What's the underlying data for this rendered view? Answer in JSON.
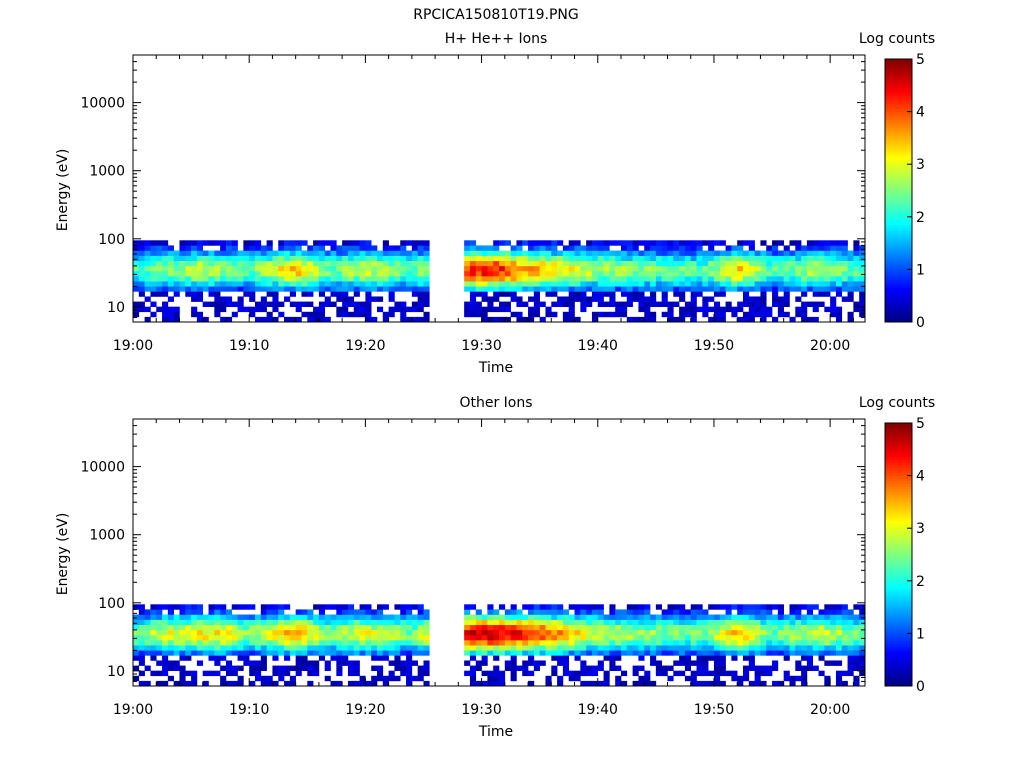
{
  "title": "RPCICA150810T19.PNG",
  "chart_data": [
    {
      "type": "heatmap",
      "title": "H+ He++ Ions",
      "xlabel": "Time",
      "ylabel": "Energy (eV)",
      "x_ticks": [
        "19:00",
        "19:10",
        "19:20",
        "19:30",
        "19:40",
        "19:50",
        "20:00"
      ],
      "xlim": [
        "19:00",
        "20:03"
      ],
      "y_scale": "log",
      "y_ticks": [
        10,
        100,
        1000,
        10000
      ],
      "y_tick_labels": [
        "10",
        "100",
        "1000",
        "10000"
      ],
      "ylim": [
        6,
        50000
      ],
      "colorbar": {
        "label": "Log counts",
        "range": [
          0,
          5
        ],
        "ticks": [
          "0",
          "1",
          "2",
          "3",
          "4",
          "5"
        ],
        "colormap": "jet"
      },
      "data_gap": [
        "19:25.5",
        "19:28.5"
      ],
      "data_energy_range_eV": [
        6,
        95
      ],
      "profile": [
        {
          "t": 0,
          "v": 2.2
        },
        {
          "t": 3,
          "v": 2.5
        },
        {
          "t": 6,
          "v": 2.9
        },
        {
          "t": 8,
          "v": 2.6
        },
        {
          "t": 10,
          "v": 2.3
        },
        {
          "t": 14,
          "v": 3.5
        },
        {
          "t": 17,
          "v": 2.4
        },
        {
          "t": 20,
          "v": 2.9
        },
        {
          "t": 24,
          "v": 2.3
        },
        {
          "t": 29,
          "v": 4.2
        },
        {
          "t": 31,
          "v": 4.4
        },
        {
          "t": 34,
          "v": 3.6
        },
        {
          "t": 37,
          "v": 3.2
        },
        {
          "t": 40,
          "v": 2.7
        },
        {
          "t": 45,
          "v": 2.5
        },
        {
          "t": 49,
          "v": 2.2
        },
        {
          "t": 52,
          "v": 3.4
        },
        {
          "t": 55,
          "v": 2.2
        },
        {
          "t": 59,
          "v": 2.8
        },
        {
          "t": 63,
          "v": 2.2
        }
      ]
    },
    {
      "type": "heatmap",
      "title": "Other Ions",
      "xlabel": "Time",
      "ylabel": "Energy (eV)",
      "x_ticks": [
        "19:00",
        "19:10",
        "19:20",
        "19:30",
        "19:40",
        "19:50",
        "20:00"
      ],
      "xlim": [
        "19:00",
        "20:03"
      ],
      "y_scale": "log",
      "y_ticks": [
        10,
        100,
        1000,
        10000
      ],
      "y_tick_labels": [
        "10",
        "100",
        "1000",
        "10000"
      ],
      "ylim": [
        6,
        50000
      ],
      "colorbar": {
        "label": "Log counts",
        "range": [
          0,
          5
        ],
        "ticks": [
          "0",
          "1",
          "2",
          "3",
          "4",
          "5"
        ],
        "colormap": "jet"
      },
      "data_gap": [
        "19:25.5",
        "19:28.5"
      ],
      "data_energy_range_eV": [
        6,
        95
      ],
      "profile": [
        {
          "t": 0,
          "v": 2.4
        },
        {
          "t": 3,
          "v": 3.0
        },
        {
          "t": 6,
          "v": 3.1
        },
        {
          "t": 8,
          "v": 3.3
        },
        {
          "t": 10,
          "v": 2.5
        },
        {
          "t": 14,
          "v": 3.6
        },
        {
          "t": 17,
          "v": 2.5
        },
        {
          "t": 20,
          "v": 3.0
        },
        {
          "t": 24,
          "v": 2.4
        },
        {
          "t": 29,
          "v": 4.6
        },
        {
          "t": 31,
          "v": 4.6
        },
        {
          "t": 34,
          "v": 4.2
        },
        {
          "t": 37,
          "v": 3.6
        },
        {
          "t": 40,
          "v": 2.8
        },
        {
          "t": 45,
          "v": 2.6
        },
        {
          "t": 49,
          "v": 2.3
        },
        {
          "t": 52,
          "v": 3.6
        },
        {
          "t": 55,
          "v": 2.3
        },
        {
          "t": 59,
          "v": 3.0
        },
        {
          "t": 63,
          "v": 2.3
        }
      ]
    }
  ]
}
